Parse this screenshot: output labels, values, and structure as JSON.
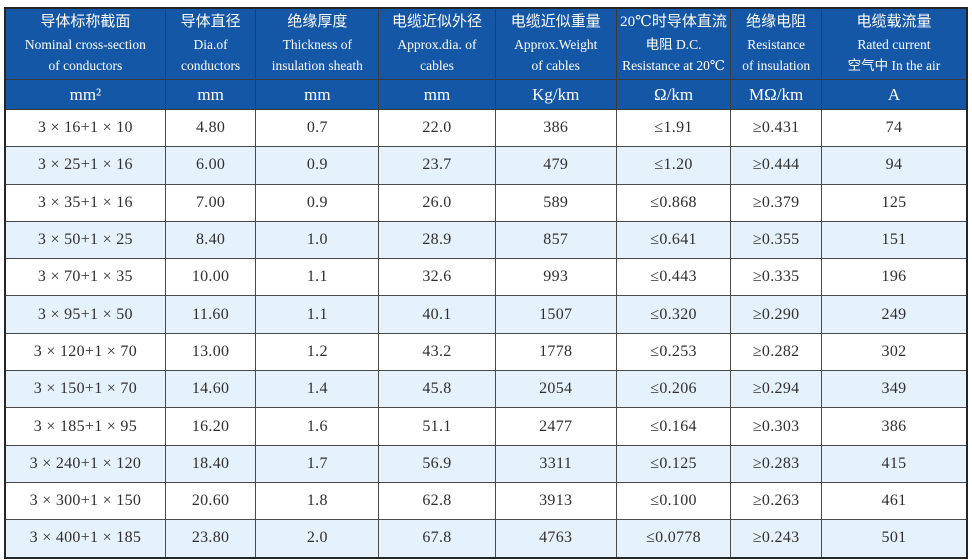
{
  "page": {
    "background": "#ffffff",
    "description_title": "Cable specification table"
  },
  "colors": {
    "header_bg": "#1557a7",
    "header_text": "#ffffff",
    "row_bg": "#ffffff",
    "row_alt_bg": "#e6f2fb",
    "border": "#4a4a4a",
    "border_dark": "#3a3a3a",
    "outer_border": "#262626",
    "cell_text": "#2f2f2f"
  },
  "table": {
    "columns": [
      {
        "header": "导体标称截面\nNominal cross-section\nof conductors",
        "unit": "mm²",
        "width_pct": 16.8
      },
      {
        "header": "导体直径\nDia.of\nconductors",
        "unit": "mm",
        "width_pct": 9.3
      },
      {
        "header": "绝缘厚度\nThickness of\ninsulation sheath",
        "unit": "mm",
        "width_pct": 12.8
      },
      {
        "header": "电缆近似外径\nApprox.dia. of\ncables",
        "unit": "mm",
        "width_pct": 12.1
      },
      {
        "header": "电缆近似重量\nApprox.Weight\nof cables",
        "unit": "Kg/km",
        "width_pct": 12.6
      },
      {
        "header": "20℃时导体直流\n电阻 D.C.\nResistance at 20℃",
        "unit": "Ω/km",
        "width_pct": 11.9
      },
      {
        "header": "绝缘电阻\nResistance\nof insulation",
        "unit": "MΩ/km",
        "width_pct": 9.3
      },
      {
        "header": "电缆载流量\nRated current\n空气中 In the air",
        "unit": "A",
        "width_pct": 15.2
      }
    ],
    "rows": [
      [
        "3 × 16+1 × 10",
        "4.80",
        "0.7",
        "22.0",
        "386",
        "≤1.91",
        "≥0.431",
        "74"
      ],
      [
        "3 × 25+1 × 16",
        "6.00",
        "0.9",
        "23.7",
        "479",
        "≤1.20",
        "≥0.444",
        "94"
      ],
      [
        "3 × 35+1 × 16",
        "7.00",
        "0.9",
        "26.0",
        "589",
        "≤0.868",
        "≥0.379",
        "125"
      ],
      [
        "3 × 50+1 × 25",
        "8.40",
        "1.0",
        "28.9",
        "857",
        "≤0.641",
        "≥0.355",
        "151"
      ],
      [
        "3 × 70+1 × 35",
        "10.00",
        "1.1",
        "32.6",
        "993",
        "≤0.443",
        "≥0.335",
        "196"
      ],
      [
        "3 × 95+1 × 50",
        "11.60",
        "1.1",
        "40.1",
        "1507",
        "≤0.320",
        "≥0.290",
        "249"
      ],
      [
        "3 × 120+1 × 70",
        "13.00",
        "1.2",
        "43.2",
        "1778",
        "≤0.253",
        "≥0.282",
        "302"
      ],
      [
        "3 × 150+1 × 70",
        "14.60",
        "1.4",
        "45.8",
        "2054",
        "≤0.206",
        "≥0.294",
        "349"
      ],
      [
        "3 × 185+1 × 95",
        "16.20",
        "1.6",
        "51.1",
        "2477",
        "≤0.164",
        "≥0.303",
        "386"
      ],
      [
        "3 × 240+1 × 120",
        "18.40",
        "1.7",
        "56.9",
        "3311",
        "≤0.125",
        "≥0.283",
        "415"
      ],
      [
        "3 × 300+1 × 150",
        "20.60",
        "1.8",
        "62.8",
        "3913",
        "≤0.100",
        "≥0.263",
        "461"
      ],
      [
        "3 × 400+1 × 185",
        "23.80",
        "2.0",
        "67.8",
        "4763",
        "≤0.0778",
        "≥0.243",
        "501"
      ]
    ]
  }
}
